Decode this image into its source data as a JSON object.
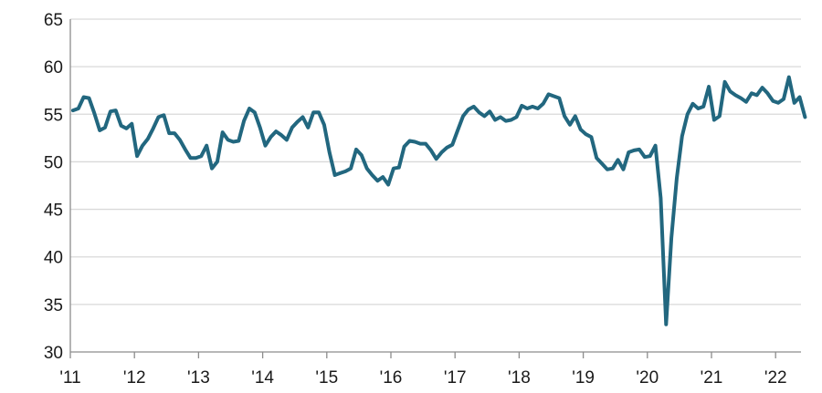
{
  "chart_data": {
    "type": "line",
    "title": "",
    "xlabel": "",
    "ylabel": "",
    "ylim": [
      30,
      65
    ],
    "yticks": [
      "30",
      "35",
      "40",
      "45",
      "50",
      "55",
      "60",
      "65"
    ],
    "xticks": [
      "'11",
      "'12",
      "'13",
      "'14",
      "'15",
      "'16",
      "'17",
      "'18",
      "'19",
      "'20",
      "'21",
      "'22"
    ],
    "grid": "horizontal",
    "line_color": "#22677f",
    "grid_color": "#d9d9d9",
    "series": [
      {
        "values": [
          55.4,
          55.6,
          56.8,
          56.7,
          55.1,
          53.3,
          53.6,
          55.3,
          55.4,
          53.8,
          53.5,
          54.0,
          50.6,
          51.7,
          52.4,
          53.5,
          54.7,
          54.9,
          53.0,
          53.0,
          52.3,
          51.3,
          50.4,
          50.4,
          50.6,
          51.7,
          49.3,
          50.0,
          53.1,
          52.3,
          52.1,
          52.2,
          54.3,
          55.6,
          55.2,
          53.6,
          51.7,
          52.6,
          53.2,
          52.8,
          52.3,
          53.6,
          54.2,
          54.7,
          53.6,
          55.2,
          55.2,
          53.9,
          51.0,
          48.6,
          48.8,
          49.0,
          49.3,
          51.3,
          50.7,
          49.3,
          48.6,
          48.0,
          48.4,
          47.6,
          49.3,
          49.4,
          51.6,
          52.2,
          52.1,
          51.9,
          51.9,
          51.2,
          50.3,
          51.0,
          51.5,
          51.8,
          53.3,
          54.8,
          55.5,
          55.8,
          55.2,
          54.8,
          55.3,
          54.4,
          54.7,
          54.3,
          54.4,
          54.7,
          55.9,
          55.6,
          55.8,
          55.6,
          56.1,
          57.1,
          56.9,
          56.7,
          54.8,
          53.9,
          54.8,
          53.4,
          52.9,
          52.6,
          50.4,
          49.8,
          49.2,
          49.3,
          50.2,
          49.2,
          51.0,
          51.2,
          51.3,
          50.5,
          50.6,
          51.7,
          46.2,
          32.9,
          42.0,
          48.3,
          52.7,
          55.0,
          56.1,
          55.6,
          55.8,
          57.9,
          54.4,
          54.8,
          58.4,
          57.4,
          57.0,
          56.7,
          56.3,
          57.2,
          57.0,
          57.8,
          57.2,
          56.4,
          56.2,
          56.6,
          58.9,
          56.2,
          56.8,
          54.7
        ]
      }
    ]
  }
}
